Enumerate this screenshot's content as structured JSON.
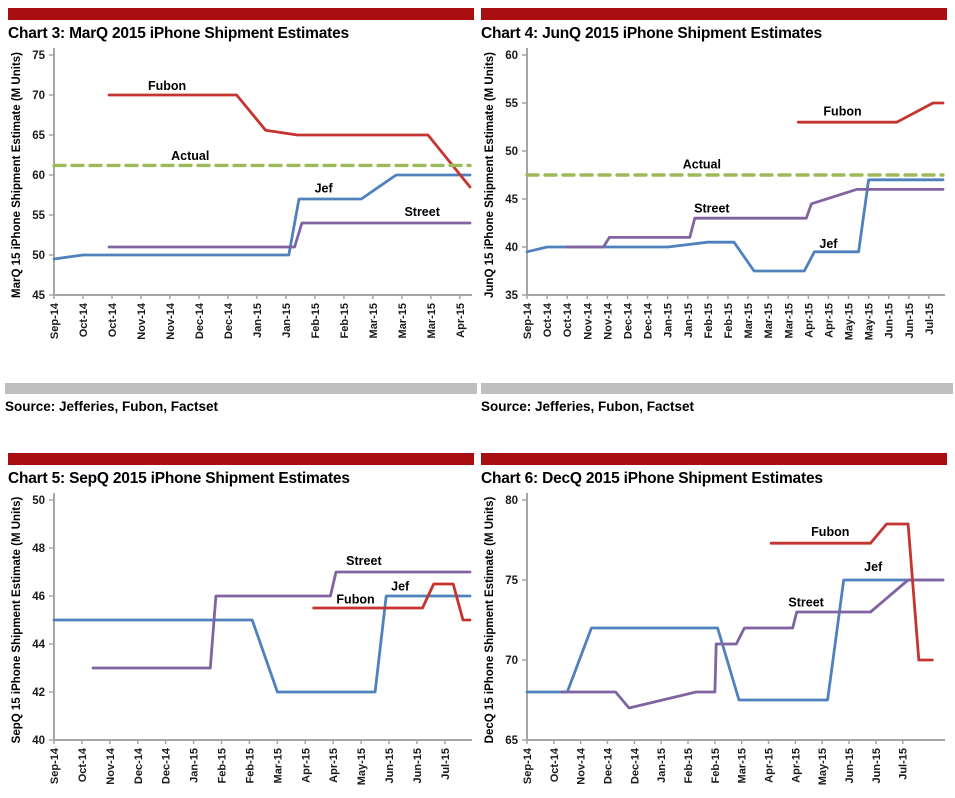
{
  "page": {
    "header_bar_color": "#A90F11",
    "gray_bar_color": "#BFBFBF",
    "axis_color": "#A6A6A6",
    "tick_label_color": "#1a1a1a",
    "sources": [
      {
        "text": "Source: Jefferies, Fubon, Factset"
      },
      {
        "text": "Source: Jefferies, Fubon, Factset"
      }
    ]
  },
  "chart_data": [
    {
      "type": "line",
      "title": "Chart 3: MarQ 2015 iPhone Shipment Estimates",
      "ylabel": "MarQ 15 iPhone Shipment Estimate (M Units)",
      "ylim": [
        45,
        75
      ],
      "ytick_step": 5,
      "grid": false,
      "legend_position": "inline-annotations",
      "categories": [
        "Sep-14",
        "Oct-14",
        "Oct-14",
        "Nov-14",
        "Nov-14",
        "Dec-14",
        "Dec-14",
        "Jan-15",
        "Jan-15",
        "Feb-15",
        "Feb-15",
        "Mar-15",
        "Mar-15",
        "Mar-15",
        "Apr-15"
      ],
      "x_extend": 0.35,
      "series": [
        {
          "name": "Jef",
          "color": "#4F81BD",
          "dash": false,
          "points": [
            [
              0,
              49.5
            ],
            [
              1,
              50
            ],
            [
              8.1,
              50
            ],
            [
              8.45,
              57
            ],
            [
              10.6,
              57
            ],
            [
              11.8,
              60
            ],
            [
              14.35,
              60
            ]
          ]
        },
        {
          "name": "Street",
          "color": "#8064A2",
          "dash": false,
          "points": [
            [
              1.9,
              51
            ],
            [
              8.3,
              51
            ],
            [
              8.55,
              54
            ],
            [
              14.35,
              54
            ]
          ]
        },
        {
          "name": "Fubon",
          "color": "#C5342F",
          "dash": false,
          "points": [
            [
              1.9,
              70
            ],
            [
              6.3,
              70
            ],
            [
              7.3,
              65.6
            ],
            [
              8.4,
              65
            ],
            [
              12.9,
              65
            ],
            [
              14.35,
              58.5
            ]
          ]
        },
        {
          "name": "Actual",
          "color": "#9BBB59",
          "dash": true,
          "points": [
            [
              0,
              61.2
            ],
            [
              14.35,
              61.2
            ]
          ]
        }
      ],
      "annotations": [
        {
          "text": "Fubon",
          "x": 3.9,
          "y": 71.1
        },
        {
          "text": "Actual",
          "x": 4.7,
          "y": 62.4
        },
        {
          "text": "Jef",
          "x": 9.3,
          "y": 58.3
        },
        {
          "text": "Street",
          "x": 12.7,
          "y": 55.4
        }
      ]
    },
    {
      "type": "line",
      "title": "Chart 4: JunQ 2015 iPhone Shipment Estimates",
      "ylabel": "JunQ 15 iPhone Shipment Estimate (M Units)",
      "ylim": [
        35,
        60
      ],
      "ytick_step": 5,
      "grid": false,
      "legend_position": "inline-annotations",
      "categories": [
        "Sep-14",
        "Oct-14",
        "Oct-14",
        "Nov-14",
        "Nov-14",
        "Dec-14",
        "Dec-14",
        "Jan-15",
        "Jan-15",
        "Feb-15",
        "Feb-15",
        "Mar-15",
        "Mar-15",
        "Mar-15",
        "Apr-15",
        "Apr-15",
        "May-15",
        "May-15",
        "Jun-15",
        "Jun-15",
        "Jul-15"
      ],
      "x_extend": 0.7,
      "series": [
        {
          "name": "Jef",
          "color": "#4F81BD",
          "dash": false,
          "points": [
            [
              0,
              39.5
            ],
            [
              1,
              40
            ],
            [
              7,
              40
            ],
            [
              9,
              40.5
            ],
            [
              10.3,
              40.5
            ],
            [
              11.3,
              37.5
            ],
            [
              13.8,
              37.5
            ],
            [
              14.3,
              39.5
            ],
            [
              16.5,
              39.5
            ],
            [
              17,
              47
            ],
            [
              20.7,
              47
            ]
          ]
        },
        {
          "name": "Street",
          "color": "#8064A2",
          "dash": false,
          "points": [
            [
              2,
              40
            ],
            [
              3.8,
              40
            ],
            [
              4.1,
              41
            ],
            [
              8.1,
              41
            ],
            [
              8.35,
              43
            ],
            [
              13.9,
              43
            ],
            [
              14.15,
              44.5
            ],
            [
              16.4,
              46
            ],
            [
              20.7,
              46
            ]
          ]
        },
        {
          "name": "Fubon",
          "color": "#C5342F",
          "dash": false,
          "points": [
            [
              13.5,
              53
            ],
            [
              18.4,
              53
            ],
            [
              20.2,
              55
            ],
            [
              20.7,
              55
            ]
          ]
        },
        {
          "name": "Actual",
          "color": "#9BBB59",
          "dash": true,
          "points": [
            [
              0,
              47.5
            ],
            [
              20.7,
              47.5
            ]
          ]
        }
      ],
      "annotations": [
        {
          "text": "Fubon",
          "x": 15.7,
          "y": 54.1
        },
        {
          "text": "Actual",
          "x": 8.7,
          "y": 48.6
        },
        {
          "text": "Street",
          "x": 9.2,
          "y": 44.0
        },
        {
          "text": "Jef",
          "x": 15.0,
          "y": 40.3
        }
      ]
    },
    {
      "type": "line",
      "title": "Chart 5: SepQ 2015 iPhone Shipment Estimates",
      "ylabel": "SepQ 15 iPhone Shipment Estimate (M Units)",
      "ylim": [
        40,
        50
      ],
      "ytick_step": 2,
      "grid": false,
      "legend_position": "inline-annotations",
      "categories": [
        "Sep-14",
        "Oct-14",
        "Nov-14",
        "Dec-14",
        "Dec-14",
        "Jan-15",
        "Feb-15",
        "Feb-15",
        "Mar-15",
        "Apr-15",
        "Apr-15",
        "May-15",
        "Jun-15",
        "Jun-15",
        "Jul-15"
      ],
      "x_extend": 0.9,
      "series": [
        {
          "name": "Jef",
          "color": "#4F81BD",
          "dash": false,
          "points": [
            [
              0,
              45
            ],
            [
              7.1,
              45
            ],
            [
              8,
              42
            ],
            [
              11.5,
              42
            ],
            [
              11.9,
              46
            ],
            [
              14.9,
              46
            ]
          ]
        },
        {
          "name": "Street",
          "color": "#8064A2",
          "dash": false,
          "points": [
            [
              1.4,
              43
            ],
            [
              5.6,
              43
            ],
            [
              5.8,
              46
            ],
            [
              9.9,
              46
            ],
            [
              10.1,
              47
            ],
            [
              14.9,
              47
            ]
          ]
        },
        {
          "name": "Fubon",
          "color": "#C5342F",
          "dash": false,
          "points": [
            [
              9.3,
              45.5
            ],
            [
              13.2,
              45.5
            ],
            [
              13.6,
              46.5
            ],
            [
              14.3,
              46.5
            ],
            [
              14.65,
              45
            ],
            [
              14.9,
              45
            ]
          ]
        }
      ],
      "annotations": [
        {
          "text": "Street",
          "x": 11.1,
          "y": 47.45
        },
        {
          "text": "Jef",
          "x": 12.4,
          "y": 46.4
        },
        {
          "text": "Fubon",
          "x": 10.8,
          "y": 45.85
        }
      ]
    },
    {
      "type": "line",
      "title": "Chart 6: DecQ 2015 iPhone Shipment Estimates",
      "ylabel": "DecQ 15 iPhone Shipment Estimate (M Units)",
      "ylim": [
        65,
        80
      ],
      "ytick_step": 5,
      "grid": false,
      "legend_position": "inline-annotations",
      "categories": [
        "Sep-14",
        "Oct-14",
        "Nov-14",
        "Dec-14",
        "Dec-14",
        "Jan-15",
        "Feb-15",
        "Feb-15",
        "Mar-15",
        "Apr-15",
        "Apr-15",
        "May-15",
        "Jun-15",
        "Jun-15",
        "Jul-15"
      ],
      "x_extend": 1.5,
      "series": [
        {
          "name": "Jef",
          "color": "#4F81BD",
          "dash": false,
          "points": [
            [
              0,
              68
            ],
            [
              1.5,
              68
            ],
            [
              2.4,
              72
            ],
            [
              7.1,
              72
            ],
            [
              7.9,
              67.5
            ],
            [
              11.2,
              67.5
            ],
            [
              11.8,
              75
            ],
            [
              15.5,
              75
            ]
          ]
        },
        {
          "name": "Street",
          "color": "#8064A2",
          "dash": false,
          "points": [
            [
              1.3,
              68
            ],
            [
              3.3,
              68
            ],
            [
              3.8,
              67
            ],
            [
              6.3,
              68
            ],
            [
              7,
              68
            ],
            [
              7.05,
              71
            ],
            [
              7.8,
              71
            ],
            [
              8.1,
              72
            ],
            [
              9.9,
              72
            ],
            [
              10.05,
              73
            ],
            [
              12.8,
              73
            ],
            [
              14.2,
              75
            ],
            [
              15.5,
              75
            ]
          ]
        },
        {
          "name": "Fubon",
          "color": "#C5342F",
          "dash": false,
          "points": [
            [
              9.1,
              77.3
            ],
            [
              12.8,
              77.3
            ],
            [
              13.4,
              78.5
            ],
            [
              14.2,
              78.5
            ],
            [
              14.6,
              70
            ],
            [
              15.1,
              70
            ]
          ]
        }
      ],
      "annotations": [
        {
          "text": "Fubon",
          "x": 11.3,
          "y": 78.0
        },
        {
          "text": "Jef",
          "x": 12.9,
          "y": 75.8
        },
        {
          "text": "Street",
          "x": 10.4,
          "y": 73.6
        }
      ]
    }
  ]
}
